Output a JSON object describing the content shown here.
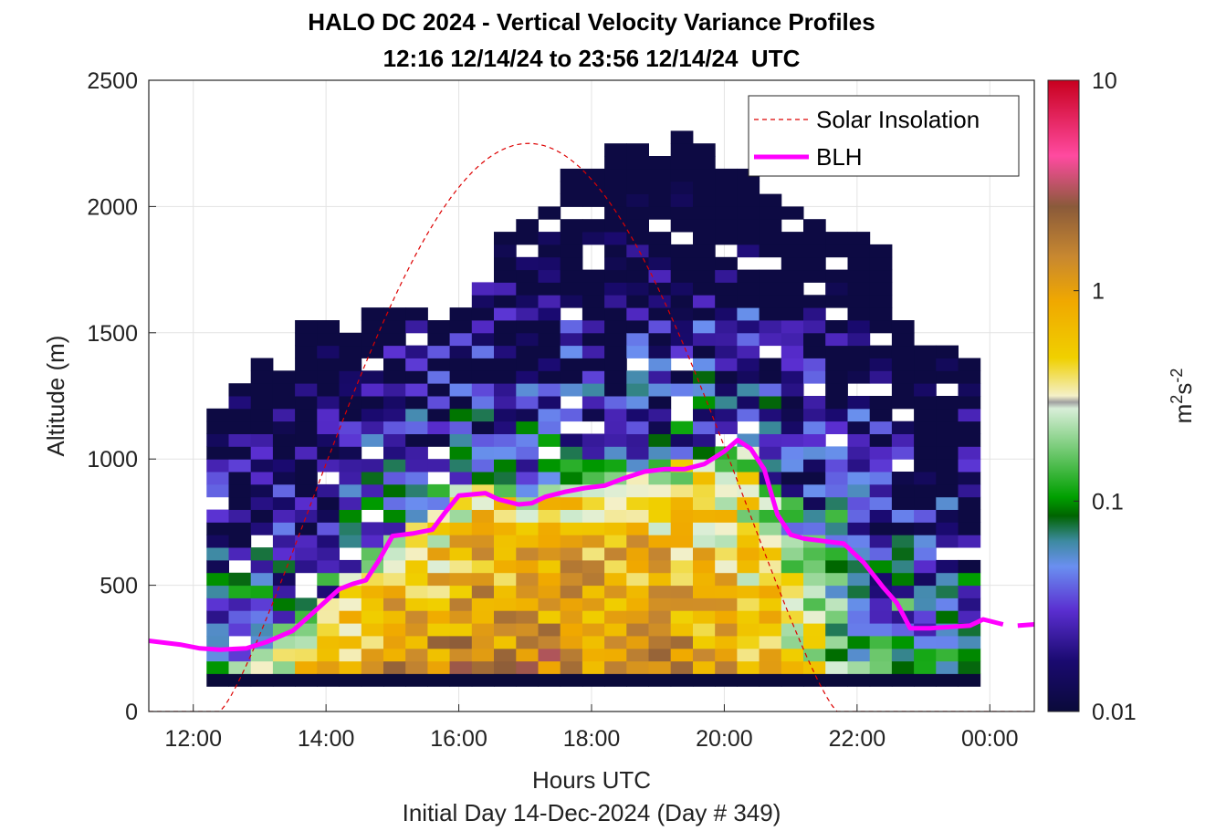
{
  "chart_data": {
    "type": "heatmap",
    "title": "HALO DC 2024 - Vertical Velocity Variance Profiles",
    "subtitle": "12:16 12/14/24 to 23:56 12/14/24  UTC",
    "xlabel": "Hours UTC",
    "xlabel2": "Initial Day 14-Dec-2024 (Day # 349)",
    "ylabel": "Altitude (m)",
    "colorbar_label": "m",
    "colorbar_label_sup1": "2",
    "colorbar_label_mid": "s",
    "colorbar_label_sup2": "-2",
    "xlim_hours": [
      11.33,
      24.67
    ],
    "ylim": [
      0,
      2500
    ],
    "x_ticks": [
      {
        "hour": 12,
        "label": "12:00"
      },
      {
        "hour": 14,
        "label": "14:00"
      },
      {
        "hour": 16,
        "label": "16:00"
      },
      {
        "hour": 18,
        "label": "18:00"
      },
      {
        "hour": 20,
        "label": "20:00"
      },
      {
        "hour": 22,
        "label": "22:00"
      },
      {
        "hour": 24,
        "label": "00:00"
      }
    ],
    "y_ticks": [
      {
        "value": 0,
        "label": "0"
      },
      {
        "value": 500,
        "label": "500"
      },
      {
        "value": 1000,
        "label": "1000"
      },
      {
        "value": 1500,
        "label": "1500"
      },
      {
        "value": 2000,
        "label": "2000"
      },
      {
        "value": 2500,
        "label": "2500"
      }
    ],
    "color_scale": "log",
    "clim": [
      0.01,
      10
    ],
    "colorbar_ticks": [
      {
        "value": 0.01,
        "label": "0.01"
      },
      {
        "value": 0.1,
        "label": "0.1"
      },
      {
        "value": 1,
        "label": "1"
      },
      {
        "value": 10,
        "label": "10"
      }
    ],
    "grid": true,
    "legend_position": "top-right",
    "legend": [
      {
        "name": "Solar Insolation",
        "style": "dashed",
        "color": "#dd0000"
      },
      {
        "name": "BLH",
        "style": "solid",
        "color": "#ff00ff"
      }
    ],
    "solar_insolation": {
      "start_hour": 12.4,
      "end_hour": 21.7,
      "peak_hour": 17.05,
      "peak_altitude": 2250
    },
    "blh": {
      "hours": [
        11.33,
        11.8,
        12.1,
        12.4,
        12.8,
        13.1,
        13.5,
        13.8,
        14.2,
        14.4,
        14.6,
        14.8,
        15.0,
        15.3,
        15.6,
        15.8,
        16.0,
        16.2,
        16.4,
        16.6,
        16.9,
        17.1,
        17.3,
        17.6,
        17.9,
        18.2,
        18.5,
        18.8,
        19.1,
        19.4,
        19.7,
        20.0,
        20.2,
        20.4,
        20.6,
        20.8,
        21.0,
        21.2,
        21.5,
        21.8,
        22.1,
        22.4,
        22.6,
        22.8,
        23.1,
        23.4,
        23.7,
        23.9,
        24.2
      ],
      "altitude": [
        280,
        265,
        250,
        245,
        250,
        275,
        320,
        390,
        485,
        505,
        520,
        600,
        695,
        705,
        720,
        790,
        855,
        860,
        865,
        840,
        820,
        825,
        850,
        870,
        885,
        895,
        925,
        950,
        960,
        960,
        980,
        1030,
        1075,
        1040,
        960,
        780,
        700,
        685,
        675,
        665,
        590,
        490,
        430,
        330,
        330,
        335,
        340,
        365,
        345
      ]
    },
    "heatmap": {
      "x_start_hour": 12.2,
      "x_end_hour": 23.96,
      "cell_hours": 0.333,
      "base_altitude": 100,
      "cell_altitude": 50,
      "noise_floor_altitude": [
        1280,
        1300,
        1360,
        1340,
        1520,
        1520,
        1480,
        1600,
        1600,
        1560,
        1520,
        1580,
        1700,
        1880,
        1920,
        1980,
        2150,
        2150,
        2240,
        2250,
        2240,
        2280,
        2240,
        2150,
        2130,
        2050,
        1980,
        1950,
        1900,
        1900,
        1820,
        1520,
        1440,
        1440,
        1400,
        1400
      ]
    }
  }
}
